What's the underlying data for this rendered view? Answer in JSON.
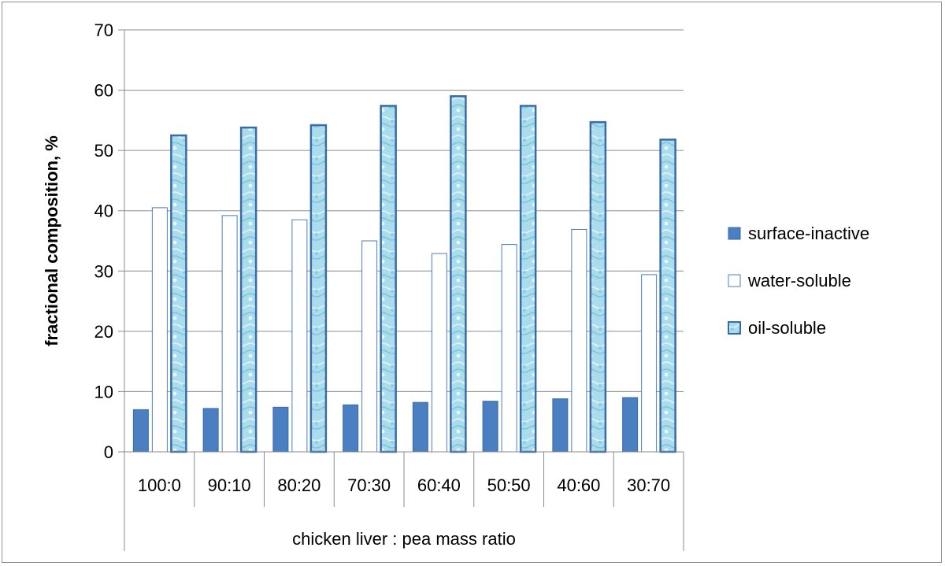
{
  "chart_data": {
    "type": "bar",
    "categories": [
      "100:0",
      "90:10",
      "80:20",
      "70:30",
      "60:40",
      "50:50",
      "40:60",
      "30:70"
    ],
    "series": [
      {
        "name": "surface-inactive",
        "values": [
          7.0,
          7.2,
          7.4,
          7.8,
          8.2,
          8.4,
          8.8,
          9.0
        ],
        "color": "#4a7fc1"
      },
      {
        "name": "water-soluble",
        "values": [
          40.5,
          39.2,
          38.5,
          35.0,
          32.9,
          34.4,
          36.9,
          29.4
        ],
        "color": "#ffffff"
      },
      {
        "name": "oil-soluble",
        "values": [
          52.5,
          53.8,
          54.2,
          57.4,
          59.0,
          57.4,
          54.7,
          51.8
        ],
        "color": "#a9dcec"
      }
    ],
    "xlabel": "chicken liver : pea mass ratio",
    "ylabel": "fractional composition, %",
    "ylim": [
      0,
      70
    ],
    "yticks": [
      0,
      10,
      20,
      30,
      40,
      50,
      60,
      70
    ],
    "grid": true,
    "legend": "right",
    "border_color": "#4a7fc1"
  }
}
